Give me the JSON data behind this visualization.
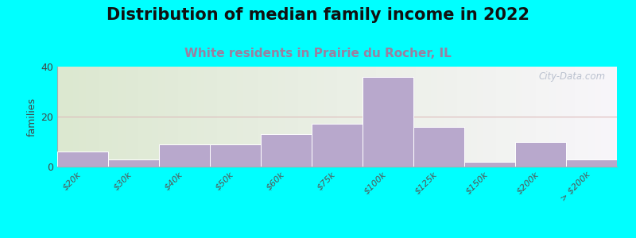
{
  "title": "Distribution of median family income in 2022",
  "subtitle": "White residents in Prairie du Rocher, IL",
  "ylabel": "families",
  "background_color": "#00FFFF",
  "plot_bg_left": "#dce8d0",
  "plot_bg_right": "#f8f6fa",
  "bar_color": "#b8a8cc",
  "bar_edge_color": "#ffffff",
  "categories": [
    "$20k",
    "$30k",
    "$40k",
    "$50k",
    "$60k",
    "$75k",
    "$100k",
    "$125k",
    "$150k",
    "$200k",
    "> $200k"
  ],
  "values": [
    6,
    3,
    9,
    9,
    13,
    17,
    36,
    16,
    2,
    10,
    3
  ],
  "ylim": [
    0,
    40
  ],
  "yticks": [
    0,
    20,
    40
  ],
  "grid_color": "#ddbbbb",
  "watermark": "City-Data.com",
  "title_fontsize": 15,
  "subtitle_fontsize": 11,
  "subtitle_color": "#9b7fa0",
  "ylabel_fontsize": 9
}
